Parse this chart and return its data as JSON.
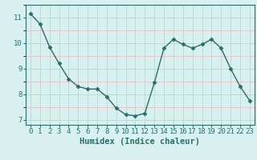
{
  "x": [
    0,
    1,
    2,
    3,
    4,
    5,
    6,
    7,
    8,
    9,
    10,
    11,
    12,
    13,
    14,
    15,
    16,
    17,
    18,
    19,
    20,
    21,
    22,
    23
  ],
  "y": [
    11.15,
    10.75,
    9.85,
    9.2,
    8.6,
    8.3,
    8.2,
    8.2,
    7.9,
    7.45,
    7.2,
    7.15,
    7.25,
    8.45,
    9.8,
    10.15,
    9.95,
    9.8,
    9.95,
    10.15,
    9.8,
    9.0,
    8.3,
    7.75
  ],
  "line_color": "#2e6b6b",
  "bg_color": "#d8f0f0",
  "grid_color_major": "#b8d8d0",
  "grid_color_minor_h": "#e8b8b8",
  "grid_color_minor_v": "#c8e8e0",
  "xlabel": "Humidex (Indice chaleur)",
  "ylim": [
    6.8,
    11.5
  ],
  "xlim": [
    -0.5,
    23.5
  ],
  "yticks": [
    7,
    8,
    9,
    10,
    11
  ],
  "xticks": [
    0,
    1,
    2,
    3,
    4,
    5,
    6,
    7,
    8,
    9,
    10,
    11,
    12,
    13,
    14,
    15,
    16,
    17,
    18,
    19,
    20,
    21,
    22,
    23
  ],
  "marker": "D",
  "markersize": 2.5,
  "linewidth": 1.0,
  "xlabel_fontsize": 7.5,
  "tick_fontsize": 6.5
}
